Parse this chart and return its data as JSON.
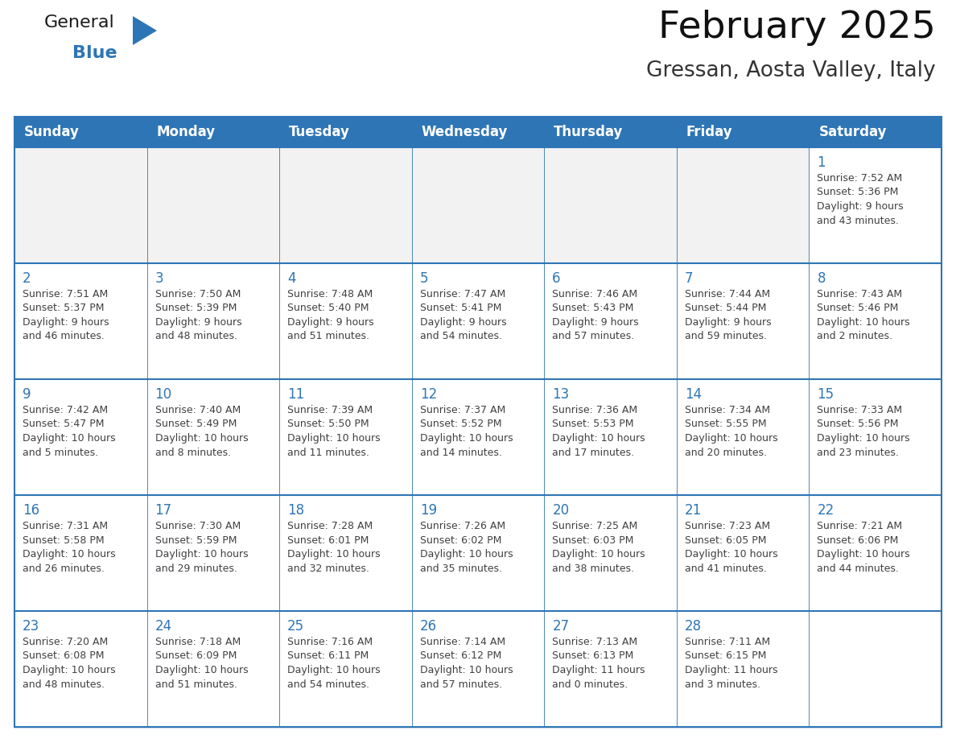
{
  "title": "February 2025",
  "subtitle": "Gressan, Aosta Valley, Italy",
  "header_bg_color": "#2E75B6",
  "header_text_color": "#FFFFFF",
  "cell_bg_color": "#FFFFFF",
  "cell_alt_bg_color": "#F2F2F2",
  "grid_line_color": "#2E75B6",
  "day_number_color": "#2E75B6",
  "cell_text_color": "#404040",
  "outer_border_color": "#2E75B6",
  "days_of_week": [
    "Sunday",
    "Monday",
    "Tuesday",
    "Wednesday",
    "Thursday",
    "Friday",
    "Saturday"
  ],
  "weeks": [
    [
      {
        "day": "",
        "info": ""
      },
      {
        "day": "",
        "info": ""
      },
      {
        "day": "",
        "info": ""
      },
      {
        "day": "",
        "info": ""
      },
      {
        "day": "",
        "info": ""
      },
      {
        "day": "",
        "info": ""
      },
      {
        "day": "1",
        "info": "Sunrise: 7:52 AM\nSunset: 5:36 PM\nDaylight: 9 hours\nand 43 minutes."
      }
    ],
    [
      {
        "day": "2",
        "info": "Sunrise: 7:51 AM\nSunset: 5:37 PM\nDaylight: 9 hours\nand 46 minutes."
      },
      {
        "day": "3",
        "info": "Sunrise: 7:50 AM\nSunset: 5:39 PM\nDaylight: 9 hours\nand 48 minutes."
      },
      {
        "day": "4",
        "info": "Sunrise: 7:48 AM\nSunset: 5:40 PM\nDaylight: 9 hours\nand 51 minutes."
      },
      {
        "day": "5",
        "info": "Sunrise: 7:47 AM\nSunset: 5:41 PM\nDaylight: 9 hours\nand 54 minutes."
      },
      {
        "day": "6",
        "info": "Sunrise: 7:46 AM\nSunset: 5:43 PM\nDaylight: 9 hours\nand 57 minutes."
      },
      {
        "day": "7",
        "info": "Sunrise: 7:44 AM\nSunset: 5:44 PM\nDaylight: 9 hours\nand 59 minutes."
      },
      {
        "day": "8",
        "info": "Sunrise: 7:43 AM\nSunset: 5:46 PM\nDaylight: 10 hours\nand 2 minutes."
      }
    ],
    [
      {
        "day": "9",
        "info": "Sunrise: 7:42 AM\nSunset: 5:47 PM\nDaylight: 10 hours\nand 5 minutes."
      },
      {
        "day": "10",
        "info": "Sunrise: 7:40 AM\nSunset: 5:49 PM\nDaylight: 10 hours\nand 8 minutes."
      },
      {
        "day": "11",
        "info": "Sunrise: 7:39 AM\nSunset: 5:50 PM\nDaylight: 10 hours\nand 11 minutes."
      },
      {
        "day": "12",
        "info": "Sunrise: 7:37 AM\nSunset: 5:52 PM\nDaylight: 10 hours\nand 14 minutes."
      },
      {
        "day": "13",
        "info": "Sunrise: 7:36 AM\nSunset: 5:53 PM\nDaylight: 10 hours\nand 17 minutes."
      },
      {
        "day": "14",
        "info": "Sunrise: 7:34 AM\nSunset: 5:55 PM\nDaylight: 10 hours\nand 20 minutes."
      },
      {
        "day": "15",
        "info": "Sunrise: 7:33 AM\nSunset: 5:56 PM\nDaylight: 10 hours\nand 23 minutes."
      }
    ],
    [
      {
        "day": "16",
        "info": "Sunrise: 7:31 AM\nSunset: 5:58 PM\nDaylight: 10 hours\nand 26 minutes."
      },
      {
        "day": "17",
        "info": "Sunrise: 7:30 AM\nSunset: 5:59 PM\nDaylight: 10 hours\nand 29 minutes."
      },
      {
        "day": "18",
        "info": "Sunrise: 7:28 AM\nSunset: 6:01 PM\nDaylight: 10 hours\nand 32 minutes."
      },
      {
        "day": "19",
        "info": "Sunrise: 7:26 AM\nSunset: 6:02 PM\nDaylight: 10 hours\nand 35 minutes."
      },
      {
        "day": "20",
        "info": "Sunrise: 7:25 AM\nSunset: 6:03 PM\nDaylight: 10 hours\nand 38 minutes."
      },
      {
        "day": "21",
        "info": "Sunrise: 7:23 AM\nSunset: 6:05 PM\nDaylight: 10 hours\nand 41 minutes."
      },
      {
        "day": "22",
        "info": "Sunrise: 7:21 AM\nSunset: 6:06 PM\nDaylight: 10 hours\nand 44 minutes."
      }
    ],
    [
      {
        "day": "23",
        "info": "Sunrise: 7:20 AM\nSunset: 6:08 PM\nDaylight: 10 hours\nand 48 minutes."
      },
      {
        "day": "24",
        "info": "Sunrise: 7:18 AM\nSunset: 6:09 PM\nDaylight: 10 hours\nand 51 minutes."
      },
      {
        "day": "25",
        "info": "Sunrise: 7:16 AM\nSunset: 6:11 PM\nDaylight: 10 hours\nand 54 minutes."
      },
      {
        "day": "26",
        "info": "Sunrise: 7:14 AM\nSunset: 6:12 PM\nDaylight: 10 hours\nand 57 minutes."
      },
      {
        "day": "27",
        "info": "Sunrise: 7:13 AM\nSunset: 6:13 PM\nDaylight: 11 hours\nand 0 minutes."
      },
      {
        "day": "28",
        "info": "Sunrise: 7:11 AM\nSunset: 6:15 PM\nDaylight: 11 hours\nand 3 minutes."
      },
      {
        "day": "",
        "info": ""
      }
    ]
  ],
  "logo_general_color": "#1a1a1a",
  "logo_blue_color": "#2E75B6",
  "title_fontsize": 34,
  "subtitle_fontsize": 19,
  "header_fontsize": 12,
  "day_num_fontsize": 12,
  "cell_text_fontsize": 9.0
}
